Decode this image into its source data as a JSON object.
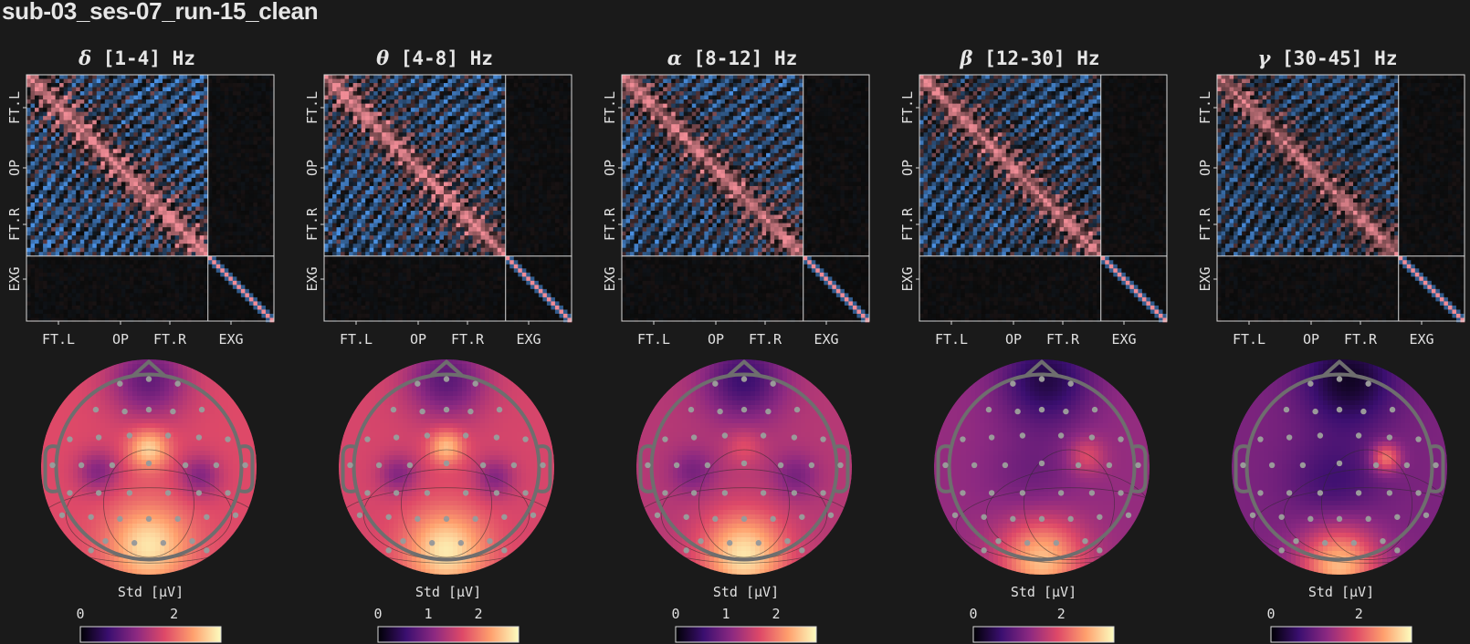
{
  "title": "sub-03_ses-07_run-15_clean",
  "channel_groups": [
    "FT.L",
    "OP",
    "FT.R",
    "EXG"
  ],
  "cmaps": {
    "connectivity": [
      "#4a90e2",
      "#0b0b0b",
      "#f08c96"
    ],
    "topomap": [
      "#000004",
      "#3b0f70",
      "#8c2981",
      "#de4968",
      "#fe9f6d",
      "#fcfdbf"
    ]
  },
  "chart_data": [
    {
      "type": "heatmap",
      "band": "delta",
      "greek": "δ",
      "range": "[1-4] Hz",
      "connectivity_strength": 1.0,
      "topo": {
        "colorbar_label": "Std [μV]",
        "colorbar_ticks": [
          "0",
          "2"
        ],
        "colorbar_tick_values": [
          0,
          2
        ],
        "colorbar_range": [
          0,
          3
        ],
        "base_level": 0.6,
        "spots": [
          {
            "label": "frontal-central peak",
            "fx": 0.0,
            "fy": -0.2,
            "sigma": 0.15,
            "amp": 0.32
          },
          {
            "label": "left temporal low",
            "fx": -0.55,
            "fy": 0.05,
            "sigma": 0.16,
            "amp": -0.22
          },
          {
            "label": "right temporal low",
            "fx": 0.55,
            "fy": 0.1,
            "sigma": 0.16,
            "amp": -0.22
          },
          {
            "label": "posterior high",
            "fx": 0.0,
            "fy": 0.85,
            "sigma": 0.3,
            "amp": 0.35
          },
          {
            "label": "top low",
            "fx": 0.0,
            "fy": -0.95,
            "sigma": 0.3,
            "amp": -0.3
          }
        ]
      }
    },
    {
      "type": "heatmap",
      "band": "theta",
      "greek": "θ",
      "range": "[4-8] Hz",
      "connectivity_strength": 0.95,
      "topo": {
        "colorbar_label": "Std [μV]",
        "colorbar_ticks": [
          "0",
          "1",
          "2"
        ],
        "colorbar_tick_values": [
          0,
          1,
          2
        ],
        "colorbar_range": [
          0,
          2.8
        ],
        "base_level": 0.58,
        "spots": [
          {
            "label": "frontal-central peak",
            "fx": 0.0,
            "fy": -0.22,
            "sigma": 0.13,
            "amp": 0.3
          },
          {
            "label": "left temporal low",
            "fx": -0.52,
            "fy": 0.08,
            "sigma": 0.15,
            "amp": -0.2
          },
          {
            "label": "right temporal low",
            "fx": 0.52,
            "fy": 0.12,
            "sigma": 0.15,
            "amp": -0.2
          },
          {
            "label": "posterior high",
            "fx": 0.0,
            "fy": 0.9,
            "sigma": 0.3,
            "amp": 0.38
          },
          {
            "label": "top low",
            "fx": 0.0,
            "fy": -0.95,
            "sigma": 0.3,
            "amp": -0.3
          }
        ]
      }
    },
    {
      "type": "heatmap",
      "band": "alpha",
      "greek": "α",
      "range": "[8-12] Hz",
      "connectivity_strength": 0.9,
      "topo": {
        "colorbar_label": "Std [μV]",
        "colorbar_ticks": [
          "0",
          "1",
          "2"
        ],
        "colorbar_tick_values": [
          0,
          1,
          2
        ],
        "colorbar_range": [
          0,
          2.8
        ],
        "base_level": 0.5,
        "spots": [
          {
            "label": "frontal-central bump",
            "fx": 0.0,
            "fy": -0.22,
            "sigma": 0.13,
            "amp": 0.12
          },
          {
            "label": "left temporal low",
            "fx": -0.55,
            "fy": 0.05,
            "sigma": 0.17,
            "amp": -0.15
          },
          {
            "label": "right temporal low",
            "fx": 0.55,
            "fy": 0.1,
            "sigma": 0.17,
            "amp": -0.15
          },
          {
            "label": "posterior high",
            "fx": 0.0,
            "fy": 0.95,
            "sigma": 0.32,
            "amp": 0.45
          },
          {
            "label": "top low",
            "fx": 0.0,
            "fy": -0.95,
            "sigma": 0.3,
            "amp": -0.3
          }
        ]
      }
    },
    {
      "type": "heatmap",
      "band": "beta",
      "greek": "β",
      "range": "[12-30] Hz",
      "connectivity_strength": 0.85,
      "topo": {
        "colorbar_label": "Std [μV]",
        "colorbar_ticks": [
          "0",
          "2"
        ],
        "colorbar_tick_values": [
          0,
          2
        ],
        "colorbar_range": [
          0,
          3.2
        ],
        "base_level": 0.42,
        "spots": [
          {
            "label": "right frontal peak",
            "fx": 0.48,
            "fy": -0.12,
            "sigma": 0.14,
            "amp": 0.2
          },
          {
            "label": "central low",
            "fx": -0.1,
            "fy": 0.1,
            "sigma": 0.35,
            "amp": -0.1
          },
          {
            "label": "posterior high",
            "fx": 0.0,
            "fy": 1.0,
            "sigma": 0.32,
            "amp": 0.45
          },
          {
            "label": "top low",
            "fx": 0.05,
            "fy": -0.95,
            "sigma": 0.35,
            "amp": -0.3
          }
        ]
      }
    },
    {
      "type": "heatmap",
      "band": "gamma",
      "greek": "γ",
      "range": "[30-45] Hz",
      "connectivity_strength": 0.8,
      "topo": {
        "colorbar_label": "Std [μV]",
        "colorbar_ticks": [
          "0",
          "2"
        ],
        "colorbar_tick_values": [
          0,
          2
        ],
        "colorbar_range": [
          0,
          3.2
        ],
        "base_level": 0.36,
        "spots": [
          {
            "label": "right frontal peak",
            "fx": 0.5,
            "fy": -0.1,
            "sigma": 0.11,
            "amp": 0.38
          },
          {
            "label": "central low",
            "fx": -0.05,
            "fy": 0.15,
            "sigma": 0.35,
            "amp": -0.15
          },
          {
            "label": "posterior high",
            "fx": 0.0,
            "fy": 1.05,
            "sigma": 0.3,
            "amp": 0.5
          },
          {
            "label": "top low",
            "fx": 0.1,
            "fy": -0.95,
            "sigma": 0.35,
            "amp": -0.3
          }
        ]
      }
    }
  ]
}
